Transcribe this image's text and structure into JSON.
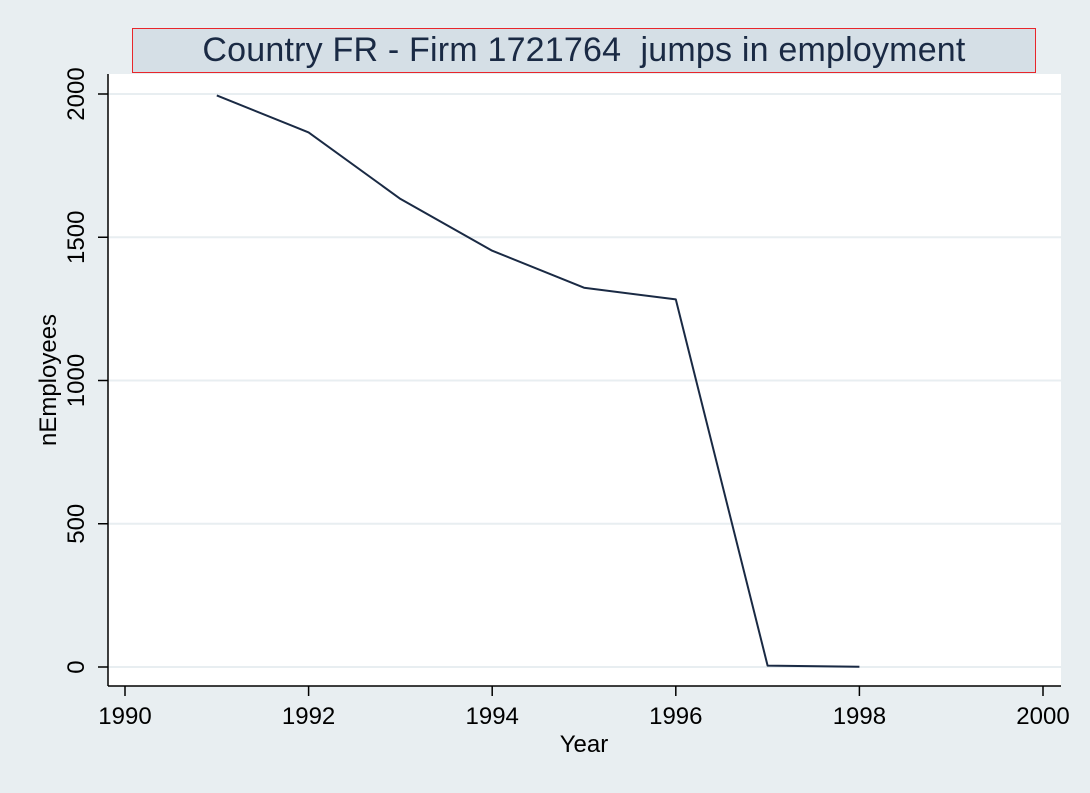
{
  "chart_data": {
    "type": "line",
    "title": "Country FR - Firm 1721764  jumps in employment",
    "xlabel": "Year",
    "ylabel": "nEmployees",
    "xlim": [
      1990,
      2000
    ],
    "ylim": [
      0,
      2000
    ],
    "x_ticks": [
      "1990",
      "1992",
      "1994",
      "1996",
      "1998",
      "2000"
    ],
    "y_ticks": [
      "0",
      "500",
      "1000",
      "1500",
      "2000"
    ],
    "grid": true,
    "series": [
      {
        "x": [
          1991,
          1992,
          1993,
          1994,
          1995,
          1996,
          1997,
          1998
        ],
        "values": [
          1995,
          1866,
          1634,
          1453,
          1324,
          1283,
          5,
          1
        ]
      }
    ],
    "colors": {
      "line": "#1a2a44",
      "background": "#e8eef1",
      "plot_area": "#ffffff",
      "grid": "#e8eef1",
      "title_border": "#e8262b",
      "title_fill": "#d5dfe6"
    }
  }
}
